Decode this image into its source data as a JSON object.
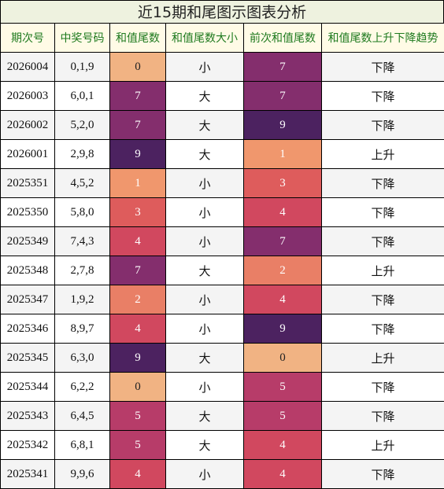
{
  "title": "近15期和尾图示图表分析",
  "columns": [
    "期次号",
    "中奖号码",
    "和值尾数",
    "和值尾数大小",
    "前次和值尾数",
    "和值尾数上升下降趋势"
  ],
  "heat_colors": {
    "0": "#f1b383",
    "1": "#f0976d",
    "2": "#e97f66",
    "3": "#de5c5c",
    "4": "#d1485f",
    "5": "#b73c69",
    "7": "#842e6d",
    "9": "#4c2260"
  },
  "rows": [
    {
      "period": "2026004",
      "numbers": "0,1,9",
      "tail": "0",
      "size": "小",
      "prev_tail": "7",
      "trend": "下降"
    },
    {
      "period": "2026003",
      "numbers": "6,0,1",
      "tail": "7",
      "size": "大",
      "prev_tail": "7",
      "trend": "下降"
    },
    {
      "period": "2026002",
      "numbers": "5,2,0",
      "tail": "7",
      "size": "大",
      "prev_tail": "9",
      "trend": "下降"
    },
    {
      "period": "2026001",
      "numbers": "2,9,8",
      "tail": "9",
      "size": "大",
      "prev_tail": "1",
      "trend": "上升"
    },
    {
      "period": "2025351",
      "numbers": "4,5,2",
      "tail": "1",
      "size": "小",
      "prev_tail": "3",
      "trend": "下降"
    },
    {
      "period": "2025350",
      "numbers": "5,8,0",
      "tail": "3",
      "size": "小",
      "prev_tail": "4",
      "trend": "下降"
    },
    {
      "period": "2025349",
      "numbers": "7,4,3",
      "tail": "4",
      "size": "小",
      "prev_tail": "7",
      "trend": "下降"
    },
    {
      "period": "2025348",
      "numbers": "2,7,8",
      "tail": "7",
      "size": "大",
      "prev_tail": "2",
      "trend": "上升"
    },
    {
      "period": "2025347",
      "numbers": "1,9,2",
      "tail": "2",
      "size": "小",
      "prev_tail": "4",
      "trend": "下降"
    },
    {
      "period": "2025346",
      "numbers": "8,9,7",
      "tail": "4",
      "size": "小",
      "prev_tail": "9",
      "trend": "下降"
    },
    {
      "period": "2025345",
      "numbers": "6,3,0",
      "tail": "9",
      "size": "大",
      "prev_tail": "0",
      "trend": "上升"
    },
    {
      "period": "2025344",
      "numbers": "6,2,2",
      "tail": "0",
      "size": "小",
      "prev_tail": "5",
      "trend": "下降"
    },
    {
      "period": "2025343",
      "numbers": "6,4,5",
      "tail": "5",
      "size": "大",
      "prev_tail": "5",
      "trend": "下降"
    },
    {
      "period": "2025342",
      "numbers": "6,8,1",
      "tail": "5",
      "size": "大",
      "prev_tail": "4",
      "trend": "上升"
    },
    {
      "period": "2025341",
      "numbers": "9,9,6",
      "tail": "4",
      "size": "小",
      "prev_tail": "4",
      "trend": "下降"
    }
  ]
}
